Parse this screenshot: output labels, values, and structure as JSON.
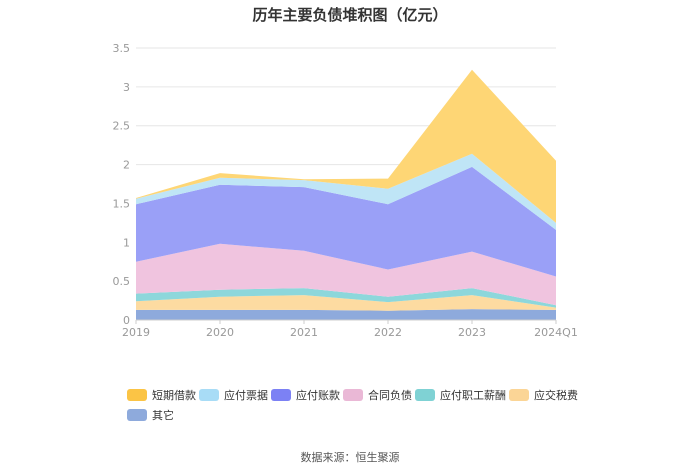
{
  "chart_data": {
    "type": "area",
    "stacked": true,
    "title": "历年主要负债堆积图（亿元）",
    "categories": [
      "2019",
      "2020",
      "2021",
      "2022",
      "2023",
      "2024Q1"
    ],
    "ylim": [
      0,
      3.5
    ],
    "yticks": [
      "0",
      "0.5",
      "1",
      "1.5",
      "2",
      "2.5",
      "3",
      "3.5"
    ],
    "grid": true,
    "legend_position": "bottom",
    "series": [
      {
        "name": "其它",
        "color": "#8eaadc",
        "values": [
          0.13,
          0.13,
          0.13,
          0.12,
          0.14,
          0.13
        ]
      },
      {
        "name": "应交税费",
        "color": "#fddba1",
        "values": [
          0.11,
          0.17,
          0.19,
          0.11,
          0.18,
          0.03
        ]
      },
      {
        "name": "应付职工薪酬",
        "color": "#8dd7db",
        "values": [
          0.1,
          0.09,
          0.09,
          0.07,
          0.09,
          0.03
        ]
      },
      {
        "name": "合同负债",
        "color": "#f0c4df",
        "values": [
          0.41,
          0.59,
          0.48,
          0.35,
          0.47,
          0.37
        ]
      },
      {
        "name": "应付账款",
        "color": "#9aa0f7",
        "values": [
          0.74,
          0.76,
          0.82,
          0.84,
          1.09,
          0.6
        ]
      },
      {
        "name": "应付票据",
        "color": "#bfe5f6",
        "values": [
          0.07,
          0.09,
          0.09,
          0.2,
          0.17,
          0.09
        ]
      },
      {
        "name": "短期借款",
        "color": "#fed675",
        "values": [
          0.01,
          0.06,
          0.01,
          0.13,
          1.08,
          0.8
        ]
      }
    ]
  },
  "legend": [
    {
      "label": "短期借款",
      "color": "#fbc445"
    },
    {
      "label": "应付票据",
      "color": "#a8dcf6"
    },
    {
      "label": "应付账款",
      "color": "#7c81f4"
    },
    {
      "label": "合同负债",
      "color": "#eab8d6"
    },
    {
      "label": "应付职工薪酬",
      "color": "#7fd2d4"
    },
    {
      "label": "应交税费",
      "color": "#fbd596"
    },
    {
      "label": "其它",
      "color": "#8eaadc"
    }
  ],
  "source": "数据来源：恒生聚源"
}
